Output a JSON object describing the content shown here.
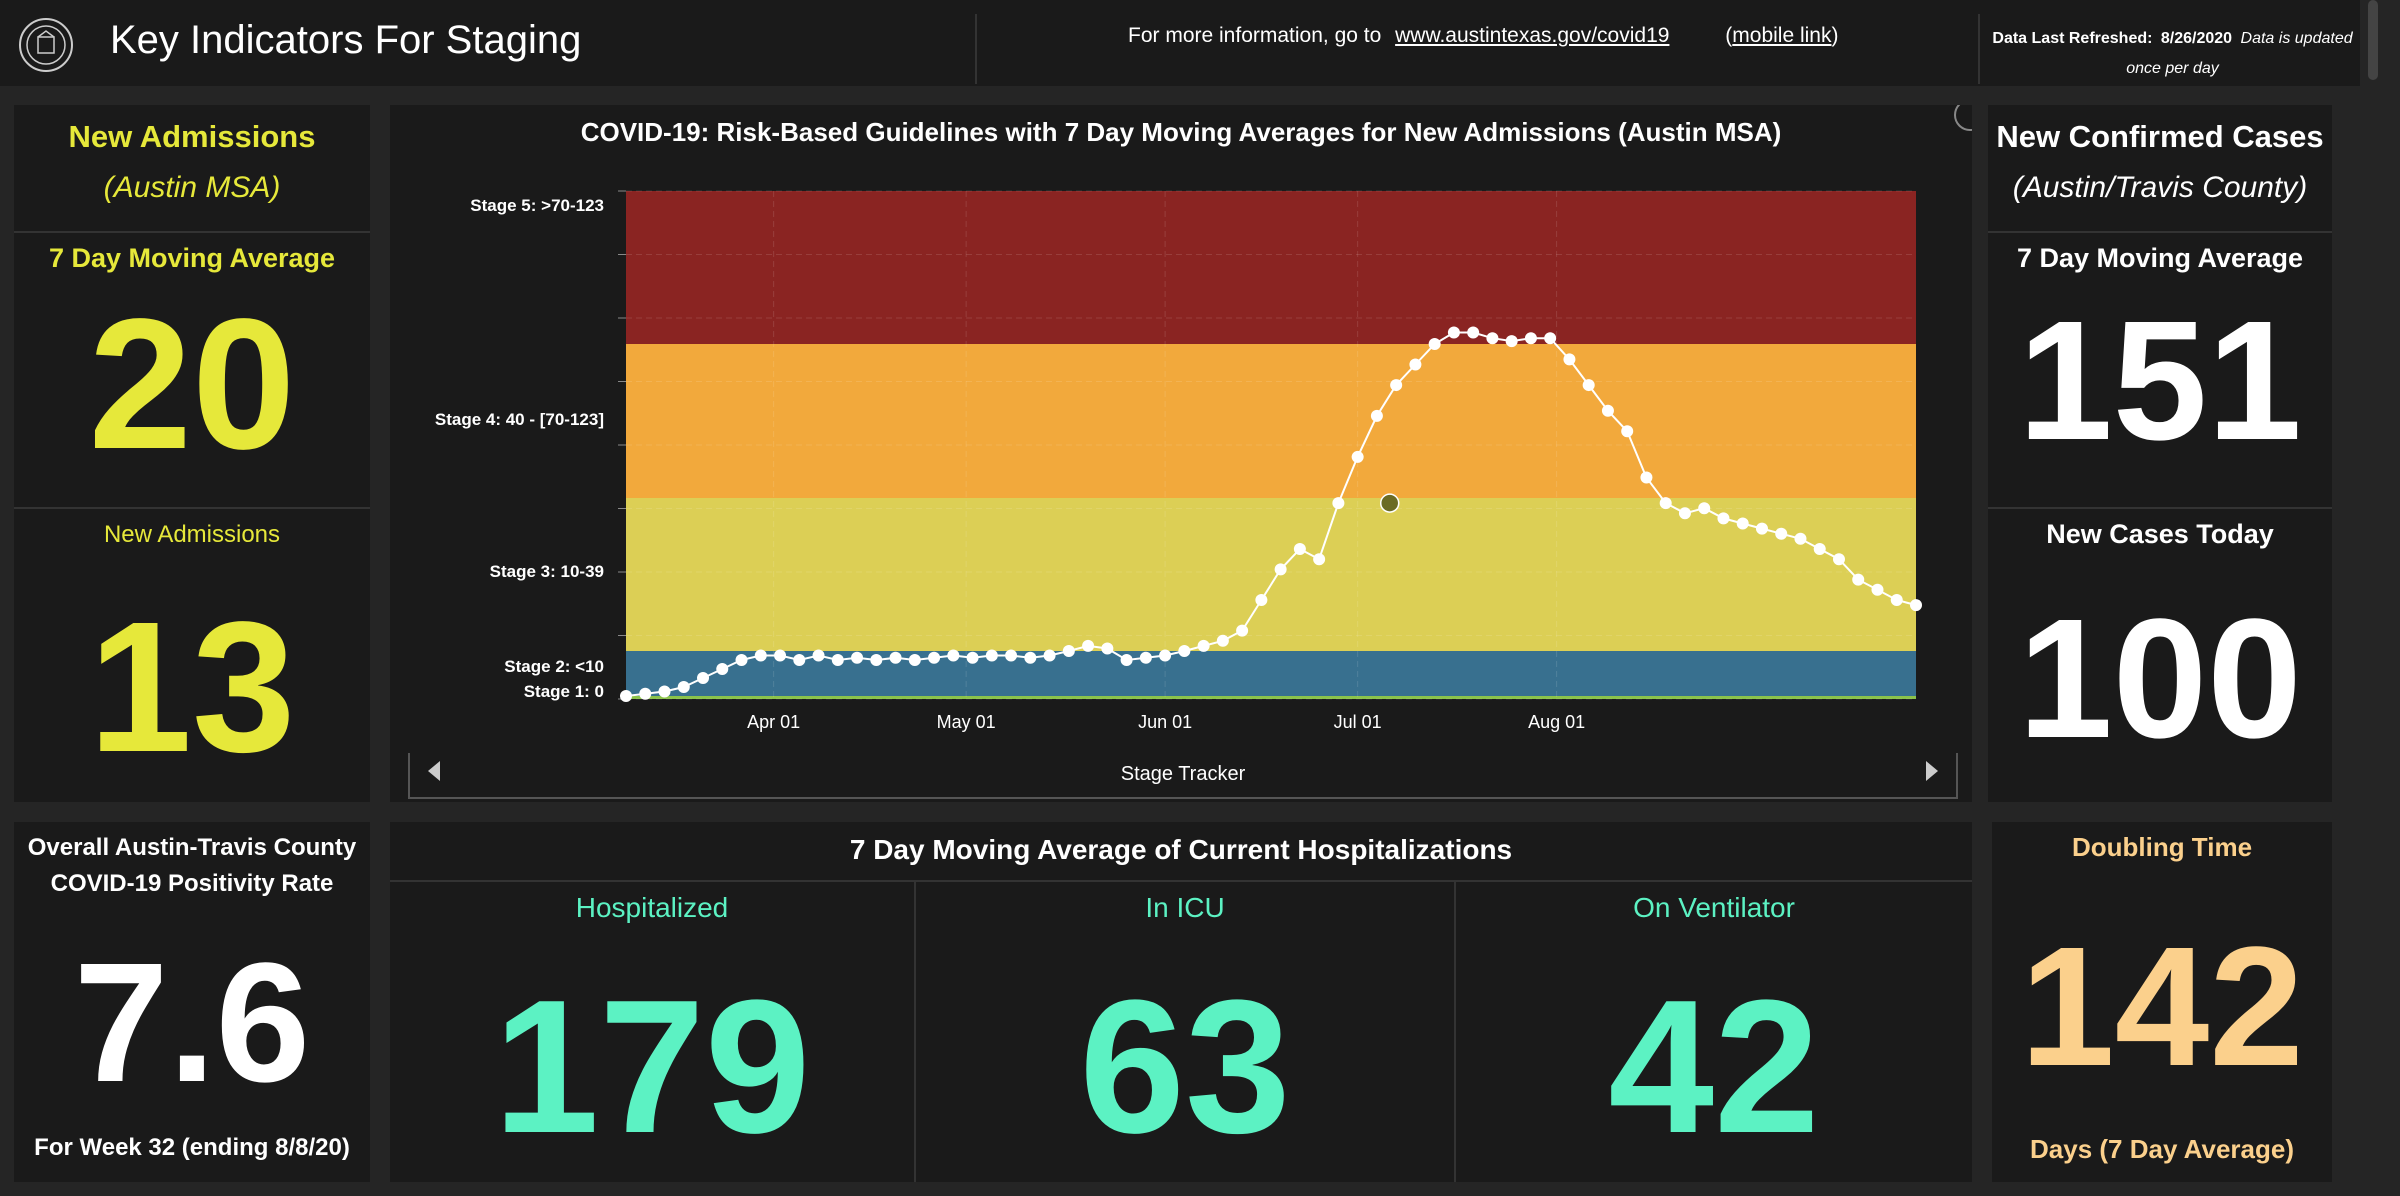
{
  "header": {
    "title": "Key Indicators For Staging",
    "info_prefix": "For more information, go to",
    "info_link": "www.austintexas.gov/covid19",
    "mobile_link": "mobile link",
    "refresh_label": "Data Last Refreshed:",
    "refresh_date": "8/26/2020",
    "refresh_note": "Data is updated once per day"
  },
  "left_top": {
    "title": "New Admissions",
    "subtitle": "(Austin MSA)",
    "avg_label": "7 Day Moving Average",
    "avg_value": "20",
    "today_label": "New Admissions",
    "today_value": "13"
  },
  "right_top": {
    "title": "New Confirmed Cases",
    "subtitle": "(Austin/Travis County)",
    "avg_label": "7 Day Moving Average",
    "avg_value": "151",
    "today_label": "New Cases Today",
    "today_value": "100"
  },
  "positivity": {
    "title_line1": "Overall Austin-Travis County",
    "title_line2": "COVID-19 Positivity Rate",
    "value": "7.6",
    "footer": "For Week 32 (ending 8/8/20)"
  },
  "hospitalizations": {
    "title": "7 Day Moving Average of Current Hospitalizations",
    "metrics": [
      {
        "label": "Hospitalized",
        "value": "179"
      },
      {
        "label": "In ICU",
        "value": "63"
      },
      {
        "label": "On Ventilator",
        "value": "42"
      }
    ]
  },
  "doubling": {
    "title": "Doubling Time",
    "value": "142",
    "footer": "Days (7 Day Average)"
  },
  "chart_nav": {
    "label": "Stage Tracker"
  },
  "chart_data": {
    "type": "line",
    "title": "COVID-19: Risk-Based Guidelines with 7 Day Moving Averages for New Admissions (Austin MSA)",
    "xlabel": "",
    "ylabel": "",
    "x_ticks": [
      "Apr 01",
      "May 01",
      "Jun 01",
      "Jul 01",
      "Aug 01"
    ],
    "bands": [
      {
        "label": "Stage 5: >70-123",
        "color": "#8a2422"
      },
      {
        "label": "Stage 4: 40 - [70-123]",
        "color": "#f2a93c"
      },
      {
        "label": "Stage 3: 10-39",
        "color": "#dccf55"
      },
      {
        "label": "Stage 2: <10",
        "color": "#38708f"
      },
      {
        "label": "Stage 1: 0",
        "color": "#8bc34a"
      }
    ],
    "series": [
      {
        "x": [
          0,
          3,
          6,
          9,
          12,
          15,
          18,
          21,
          24,
          27,
          30,
          33,
          36,
          39,
          42,
          45,
          48,
          51,
          54,
          57,
          60,
          63,
          66,
          69,
          72,
          75,
          78,
          81,
          84,
          87,
          90,
          93,
          96,
          99,
          102,
          105,
          108,
          111,
          114,
          117,
          120,
          123,
          126,
          129,
          132,
          135,
          138,
          141,
          144,
          147,
          150,
          153,
          156,
          159,
          162,
          165,
          168,
          171,
          174,
          177,
          180,
          183,
          186,
          189,
          192,
          195,
          198,
          201
        ],
        "values": [
          0,
          0.5,
          1,
          2,
          4,
          6,
          8,
          9,
          9,
          8,
          9,
          8,
          8.5,
          8,
          8.5,
          8,
          8.5,
          9,
          8.5,
          9,
          9,
          8.5,
          9,
          10,
          11,
          10.5,
          8,
          8.5,
          9,
          10,
          11,
          12,
          14,
          20,
          26,
          30,
          28,
          39,
          48,
          56,
          62,
          66,
          70,
          74,
          74,
          72,
          71,
          72,
          72,
          67,
          62,
          57,
          53,
          44,
          39,
          37,
          38,
          36,
          35,
          34,
          33,
          32,
          30,
          28,
          24,
          22,
          20,
          19
        ],
        "marker": {
          "x": 119,
          "value": 39
        }
      }
    ],
    "x_tick_positions": [
      23,
      53,
      84,
      114,
      145
    ]
  }
}
